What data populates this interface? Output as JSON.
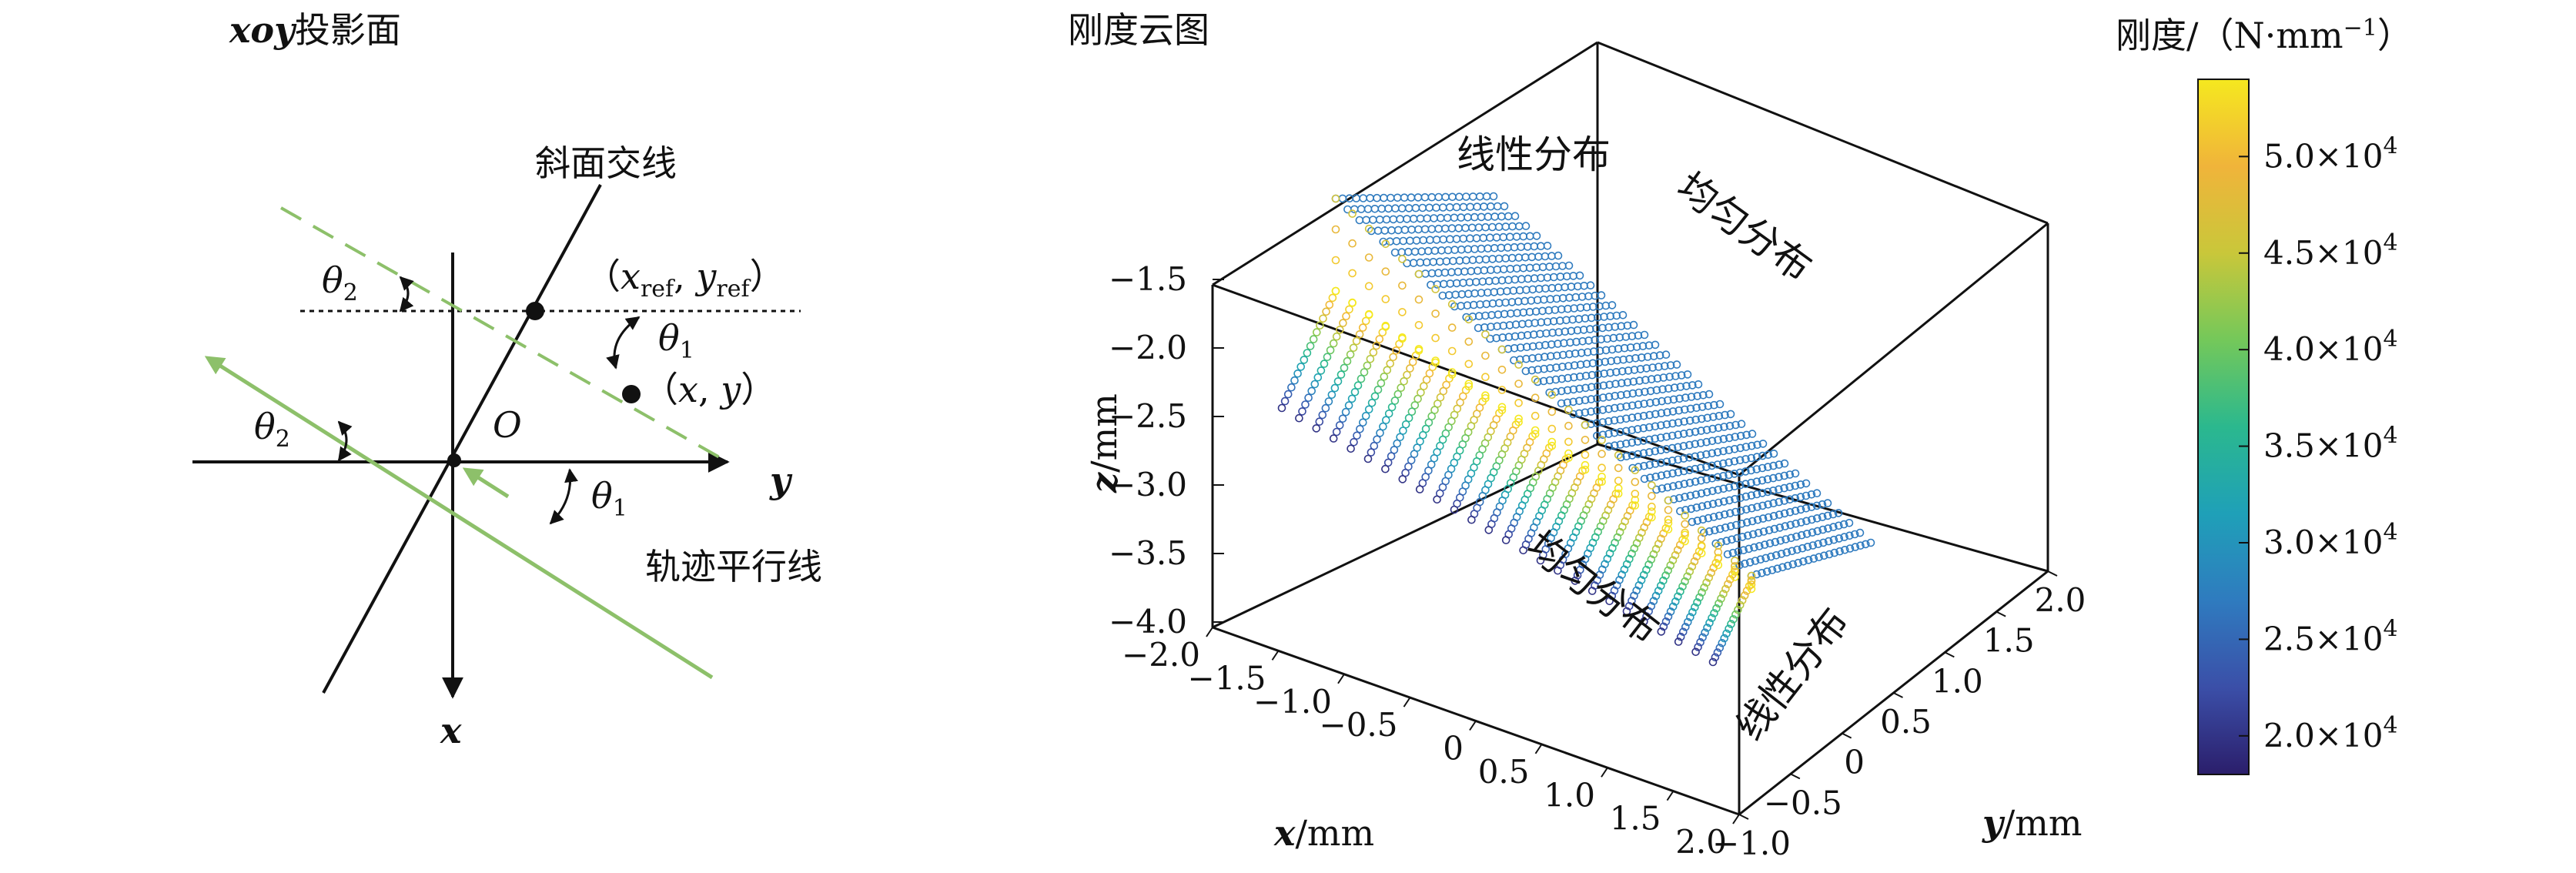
{
  "left_panel": {
    "title_prefix": "xoy",
    "title_suffix": "投影面",
    "label_slope_line": "斜面交线",
    "label_track_line": "轨迹平行线",
    "origin": "O",
    "axis_x": "x",
    "axis_y": "y",
    "theta": "θ",
    "sub_1": "1",
    "sub_2": "2",
    "ref_point": {
      "open": "（",
      "x": "x",
      "ref": "ref",
      "comma": ", ",
      "y": "y",
      "close": "）"
    },
    "point_xy": {
      "open": "（",
      "x": "x",
      "comma": ", ",
      "y": "y",
      "close": "）"
    }
  },
  "right_panel": {
    "title": "刚度云图",
    "annotations": {
      "top_linear": "线性分布",
      "top_uniform": "均匀分布",
      "front_uniform": "均匀分布",
      "front_linear": "线性分布"
    },
    "axes": {
      "x": {
        "var": "x",
        "unit": "/mm",
        "ticks": [
          "−2.0",
          "−1.5",
          "−1.0",
          "−0.5",
          "0",
          "0.5",
          "1.0",
          "1.5",
          "2.0"
        ]
      },
      "y": {
        "var": "y",
        "unit": "/mm",
        "ticks": [
          "−1.0",
          "−0.5",
          "0",
          "0.5",
          "1.0",
          "1.5",
          "2.0"
        ]
      },
      "z": {
        "var": "z",
        "unit": "/mm",
        "ticks": [
          "−1.5",
          "−2.0",
          "−2.5",
          "−3.0",
          "−3.5",
          "−4.0"
        ]
      }
    },
    "colorbar": {
      "title_main": "刚度/（N·mm",
      "title_exp": "−1",
      "title_close": "）",
      "ticks": [
        {
          "mant": "5.0×10",
          "exp": "4"
        },
        {
          "mant": "4.5×10",
          "exp": "4"
        },
        {
          "mant": "4.0×10",
          "exp": "4"
        },
        {
          "mant": "3.5×10",
          "exp": "4"
        },
        {
          "mant": "3.0×10",
          "exp": "4"
        },
        {
          "mant": "2.5×10",
          "exp": "4"
        },
        {
          "mant": "2.0×10",
          "exp": "4"
        }
      ],
      "colors": [
        "#2b1e6b",
        "#3b4fa8",
        "#2f7bbf",
        "#1fa0b8",
        "#2bb88e",
        "#74c85a",
        "#c9c73a",
        "#f0b43a",
        "#f5e81f"
      ]
    },
    "chart_data": {
      "type": "scatter",
      "title": "刚度云图",
      "xlabel": "x/mm",
      "ylabel": "y/mm",
      "zlabel": "z/mm",
      "xlim": [
        -2.0,
        2.0
      ],
      "ylim": [
        -1.0,
        2.0
      ],
      "zlim": [
        -4.0,
        -1.5
      ],
      "clim": [
        18000,
        54000
      ],
      "colorbar_label": "刚度/（N·mm⁻¹）",
      "regions": [
        {
          "name": "线性分布",
          "stiffness_range": [
            20000,
            54000
          ]
        },
        {
          "name": "均匀分布",
          "stiffness": 27000
        }
      ]
    }
  }
}
